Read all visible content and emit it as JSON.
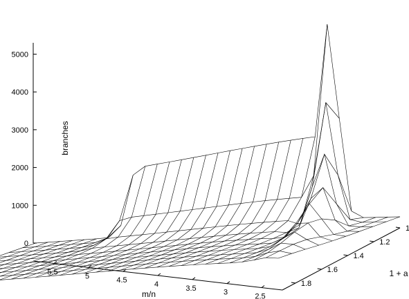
{
  "chart_data": {
    "type": "surface3d",
    "title": "",
    "zlabel": "branches",
    "xlabel": "m/n",
    "ylabel": "1 + a",
    "z_ticks": [
      "0",
      "1000",
      "2000",
      "3000",
      "4000",
      "5000"
    ],
    "x_ticks": [
      "5.5",
      "5",
      "4.5",
      "4",
      "3.5",
      "3",
      "2.5"
    ],
    "y_ticks": [
      "1",
      "1.2",
      "1.4",
      "1.6",
      "1.8"
    ],
    "zlim": [
      0,
      5600
    ],
    "xlim": [
      2.2,
      5.8
    ],
    "ylim": [
      1.0,
      1.9
    ],
    "grid_x_count": 31,
    "grid_y_count": 10,
    "peak": {
      "m_n": 2.9,
      "one_plus_a": 1.0,
      "branches": 5300
    },
    "ridge_peaks": [
      {
        "one_plus_a": 1.0,
        "m_n": 2.9,
        "branches": 5300
      },
      {
        "one_plus_a": 1.1,
        "m_n": 2.8,
        "branches": 3200
      },
      {
        "one_plus_a": 1.2,
        "m_n": 2.7,
        "branches": 2000
      },
      {
        "one_plus_a": 1.3,
        "m_n": 2.6,
        "branches": 1300
      },
      {
        "one_plus_a": 1.4,
        "m_n": 2.55,
        "branches": 900
      },
      {
        "one_plus_a": 1.5,
        "m_n": 2.5,
        "branches": 600
      },
      {
        "one_plus_a": 1.6,
        "m_n": 2.45,
        "branches": 400
      },
      {
        "one_plus_a": 1.7,
        "m_n": 2.4,
        "branches": 250
      },
      {
        "one_plus_a": 1.8,
        "m_n": 2.35,
        "branches": 150
      },
      {
        "one_plus_a": 1.9,
        "m_n": 2.3,
        "branches": 100
      }
    ],
    "plateau_at_one_plus_a_1": {
      "m_n_from": 3.0,
      "m_n_to": 4.8,
      "branches_from": 2200,
      "branches_to": 1800
    },
    "grid": false,
    "legend": "none"
  }
}
